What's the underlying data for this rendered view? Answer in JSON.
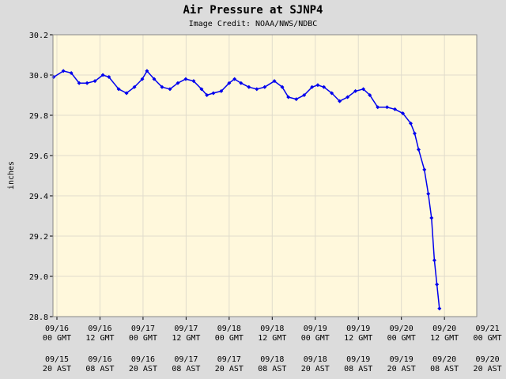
{
  "chart_data": {
    "type": "line",
    "title": "Air Pressure at SJNP4",
    "subtitle": "Image Credit: NOAA/NWS/NDBC",
    "ylabel": "inches",
    "xlim": [
      -1.1,
      117
    ],
    "ylim": [
      28.8,
      30.2
    ],
    "yticks": [
      {
        "value": 28.8,
        "label": "28.8"
      },
      {
        "value": 29.0,
        "label": "29.0"
      },
      {
        "value": 29.2,
        "label": "29.2"
      },
      {
        "value": 29.4,
        "label": "29.4"
      },
      {
        "value": 29.6,
        "label": "29.6"
      },
      {
        "value": 29.8,
        "label": "29.8"
      },
      {
        "value": 30.0,
        "label": "30.0"
      },
      {
        "value": 30.2,
        "label": "30.2"
      }
    ],
    "xticks": [
      {
        "value": 0,
        "label": "09/16 00 GMT"
      },
      {
        "value": 12,
        "label": "09/16 12 GMT"
      },
      {
        "value": 24,
        "label": "09/17 00 GMT"
      },
      {
        "value": 36,
        "label": "09/17 12 GMT"
      },
      {
        "value": 48,
        "label": "09/18 00 GMT"
      },
      {
        "value": 60,
        "label": "09/18 12 GMT"
      },
      {
        "value": 72,
        "label": "09/19 00 GMT"
      },
      {
        "value": 84,
        "label": "09/19 12 GMT"
      },
      {
        "value": 96,
        "label": "09/20 00 GMT"
      },
      {
        "value": 108,
        "label": "09/20 12 GMT"
      },
      {
        "value": 120,
        "label": "09/21 00 GMT"
      }
    ],
    "xtick_local_labels": [
      "09/15 20 AST",
      "09/16 08 AST",
      "09/16 20 AST",
      "09/17 08 AST",
      "09/17 20 AST",
      "09/18 08 AST",
      "09/18 20 AST",
      "09/19 08 AST",
      "09/19 20 AST",
      "09/20 08 AST",
      "09/20 20 AST"
    ],
    "grid": true,
    "series": [
      {
        "color": "#0000ee",
        "x": [
          -0.9,
          1.8,
          4.0,
          6.2,
          8.4,
          10.6,
          12.8,
          14.5,
          17.2,
          19.4,
          21.6,
          23.8,
          25.1,
          27.1,
          29.3,
          31.5,
          33.7,
          35.9,
          38.1,
          40.3,
          41.8,
          43.6,
          45.8,
          48.0,
          49.5,
          51.3,
          53.5,
          55.7,
          57.9,
          60.6,
          62.8,
          64.5,
          66.7,
          68.9,
          71.1,
          72.7,
          74.4,
          76.6,
          78.8,
          81.0,
          83.2,
          85.4,
          87.2,
          89.4,
          92.0,
          94.2,
          96.4,
          98.6,
          99.7,
          100.8,
          102.4,
          103.5,
          104.4,
          105.2,
          105.9,
          106.6
        ],
        "values": [
          29.99,
          30.02,
          30.01,
          29.96,
          29.96,
          29.97,
          30.0,
          29.99,
          29.93,
          29.91,
          29.94,
          29.98,
          30.02,
          29.98,
          29.94,
          29.93,
          29.96,
          29.98,
          29.97,
          29.93,
          29.9,
          29.91,
          29.92,
          29.96,
          29.98,
          29.96,
          29.94,
          29.93,
          29.94,
          29.97,
          29.94,
          29.89,
          29.88,
          29.9,
          29.94,
          29.95,
          29.94,
          29.91,
          29.87,
          29.89,
          29.92,
          29.93,
          29.9,
          29.84,
          29.84,
          29.83,
          29.81,
          29.76,
          29.71,
          29.63,
          29.53,
          29.41,
          29.29,
          29.08,
          28.96,
          28.84
        ]
      }
    ]
  }
}
